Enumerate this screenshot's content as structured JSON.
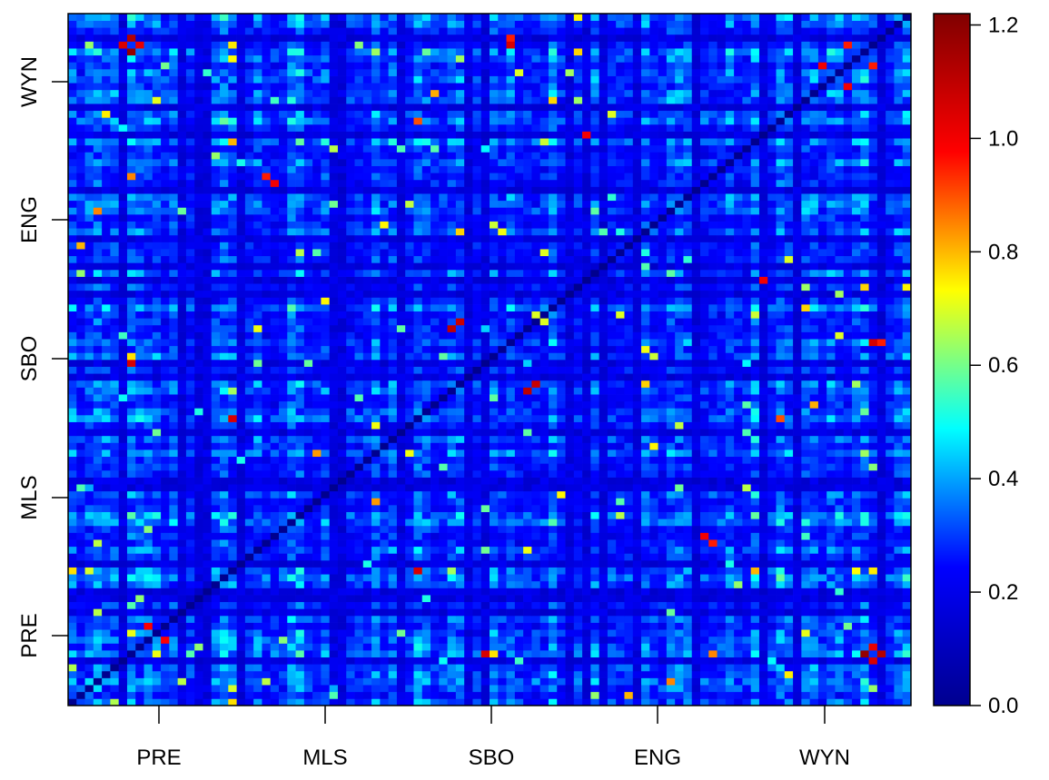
{
  "chart_data": {
    "type": "heatmap",
    "title": "",
    "xlabel": "",
    "ylabel": "",
    "x_tick_labels": [
      "PRE",
      "MLS",
      "SBO",
      "ENG",
      "WYN"
    ],
    "y_tick_labels": [
      "PRE",
      "MLS",
      "SBO",
      "ENG",
      "WYN"
    ],
    "grid": false,
    "matrix_size": 100,
    "diagonal_value": 0.0,
    "value_range": [
      0.0,
      1.22
    ],
    "colorbar": {
      "position": "right",
      "ticks": [
        0.0,
        0.2,
        0.4,
        0.6,
        0.8,
        1.0,
        1.2
      ],
      "tick_labels": [
        "0.0",
        "0.2",
        "0.4",
        "0.6",
        "0.8",
        "1.0",
        "1.2"
      ],
      "colormap": [
        "#00008f",
        "#0000ff",
        "#00ffff",
        "#ffff00",
        "#ff0000",
        "#800000"
      ]
    },
    "high_value_cells": [
      {
        "row": 7,
        "col": 94,
        "value": 1.18
      },
      {
        "row": 6,
        "col": 95,
        "value": 1.05
      },
      {
        "row": 8,
        "col": 95,
        "value": 1.02
      },
      {
        "row": 7,
        "col": 96,
        "value": 1.12
      },
      {
        "row": 7,
        "col": 49,
        "value": 1.05
      },
      {
        "row": 54,
        "col": 45,
        "value": 1.1
      },
      {
        "row": 55,
        "col": 46,
        "value": 1.08
      },
      {
        "row": 41,
        "col": 19,
        "value": 1.05
      },
      {
        "row": 24,
        "col": 75,
        "value": 1.0
      },
      {
        "row": 23,
        "col": 76,
        "value": 0.95
      },
      {
        "row": 52,
        "col": 95,
        "value": 1.05
      },
      {
        "row": 52,
        "col": 96,
        "value": 0.95
      },
      {
        "row": 82,
        "col": 61,
        "value": 1.0
      },
      {
        "row": 92,
        "col": 89,
        "value": 1.0
      },
      {
        "row": 92,
        "col": 95,
        "value": 0.95
      },
      {
        "row": 11,
        "col": 9,
        "value": 0.98
      }
    ]
  }
}
